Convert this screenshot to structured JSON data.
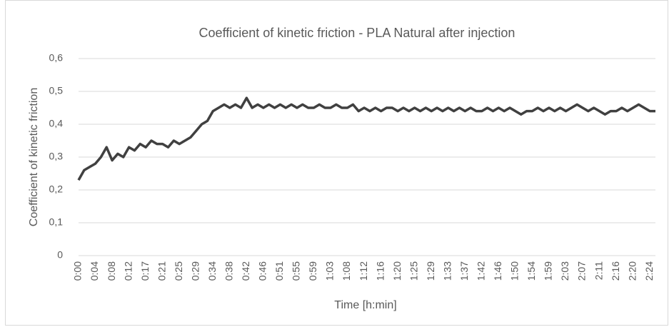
{
  "chart_data": {
    "type": "line",
    "title": "Coefficient of kinetic friction - PLA Natural after injection",
    "y_label": "Coefficient of kinetic friction",
    "x_label": "Time [h:min]",
    "categories": [
      "0:00",
      null,
      null,
      "0:04",
      null,
      null,
      "0:08",
      null,
      null,
      "0:12",
      null,
      null,
      "0:17",
      null,
      null,
      "0:21",
      null,
      null,
      "0:25",
      null,
      null,
      "0:29",
      null,
      null,
      "0:34",
      null,
      null,
      "0:38",
      null,
      null,
      "0:42",
      null,
      null,
      "0:46",
      null,
      null,
      "0:51",
      null,
      null,
      "0:55",
      null,
      null,
      "0:59",
      null,
      null,
      "1:03",
      null,
      null,
      "1:08",
      null,
      null,
      "1:12",
      null,
      null,
      "1:16",
      null,
      null,
      "1:20",
      null,
      null,
      "1:25",
      null,
      null,
      "1:29",
      null,
      null,
      "1:33",
      null,
      null,
      "1:37",
      null,
      null,
      "1:42",
      null,
      null,
      "1:46",
      null,
      null,
      "1:50",
      null,
      null,
      "1:54",
      null,
      null,
      "1:59",
      null,
      null,
      "2:03",
      null,
      null,
      "2:07",
      null,
      null,
      "2:11",
      null,
      null,
      "2:16",
      null,
      null,
      "2:20",
      null,
      null,
      "2:24",
      null
    ],
    "series": [
      {
        "color": "#404040",
        "values": [
          0.23,
          0.26,
          0.27,
          0.28,
          0.3,
          0.33,
          0.29,
          0.31,
          0.3,
          0.33,
          0.32,
          0.34,
          0.33,
          0.35,
          0.34,
          0.34,
          0.33,
          0.35,
          0.34,
          0.35,
          0.36,
          0.38,
          0.4,
          0.41,
          0.44,
          0.45,
          0.46,
          0.45,
          0.46,
          0.45,
          0.48,
          0.45,
          0.46,
          0.45,
          0.46,
          0.45,
          0.46,
          0.45,
          0.46,
          0.45,
          0.46,
          0.45,
          0.45,
          0.46,
          0.45,
          0.45,
          0.46,
          0.45,
          0.45,
          0.46,
          0.44,
          0.45,
          0.44,
          0.45,
          0.44,
          0.45,
          0.45,
          0.44,
          0.45,
          0.44,
          0.45,
          0.44,
          0.45,
          0.44,
          0.45,
          0.44,
          0.45,
          0.44,
          0.45,
          0.44,
          0.45,
          0.44,
          0.44,
          0.45,
          0.44,
          0.45,
          0.44,
          0.45,
          0.44,
          0.43,
          0.44,
          0.44,
          0.45,
          0.44,
          0.45,
          0.44,
          0.45,
          0.44,
          0.45,
          0.46,
          0.45,
          0.44,
          0.45,
          0.44,
          0.43,
          0.44,
          0.44,
          0.45,
          0.44,
          0.45,
          0.46,
          0.45,
          0.44,
          0.44
        ]
      }
    ],
    "ylim": [
      0,
      0.6
    ],
    "yticks": [
      0,
      {
        "value": 0.1,
        "label": "0,1"
      },
      {
        "value": 0.2,
        "label": "0,2"
      },
      {
        "value": 0.3,
        "label": "0,3"
      },
      {
        "value": 0.4,
        "label": "0,4"
      },
      {
        "value": 0.5,
        "label": "0,5"
      },
      {
        "value": 0.6,
        "label": "0,6"
      }
    ],
    "grid": true
  }
}
